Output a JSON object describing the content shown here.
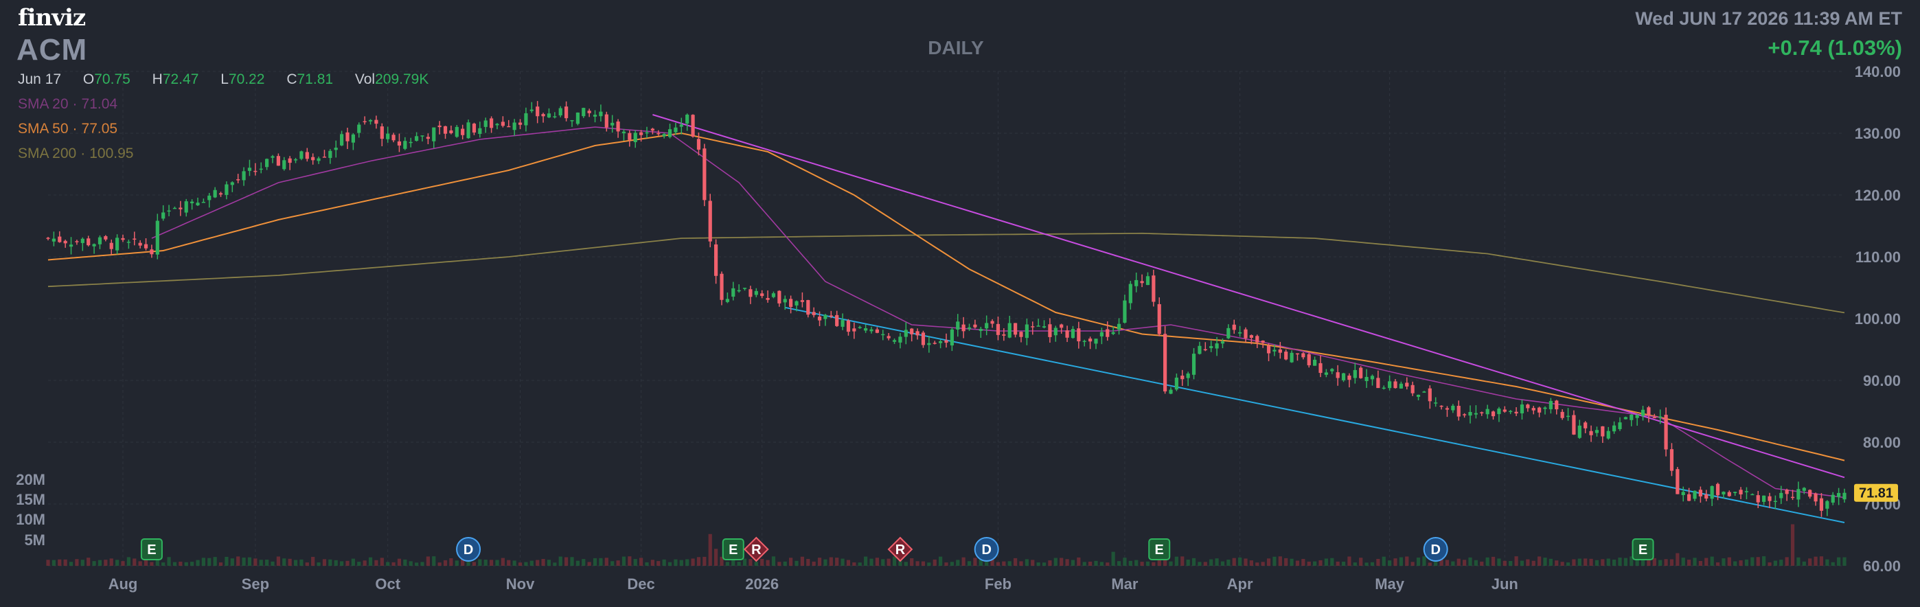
{
  "header": {
    "logo": "finviz",
    "ticker": "ACM",
    "timeframe": "DAILY",
    "datetime": "Wed JUN 17 2026 11:39 AM ET",
    "change": "+0.74 (1.03%)"
  },
  "ohlc": {
    "date": "Jun 17",
    "open_label": "O",
    "open": "70.75",
    "high_label": "H",
    "high": "72.47",
    "low_label": "L",
    "low": "70.22",
    "close_label": "C",
    "close": "71.81",
    "vol_label": "Vol",
    "vol": "209.79K"
  },
  "indicators": {
    "sma20": {
      "label": "SMA 20",
      "value": "71.04"
    },
    "sma50": {
      "label": "SMA 50",
      "value": "77.05"
    },
    "sma200": {
      "label": "SMA 200",
      "value": "100.95"
    }
  },
  "colors": {
    "background": "#22262f",
    "up": "#30b35e",
    "down": "#f0616d",
    "sma20": "#a23aa2",
    "sma50": "#f0913a",
    "sma200": "#8a8148",
    "resistance": "#c74ce0",
    "support": "#29a9e0",
    "price_tag": "#f3c93a"
  },
  "chart_data": {
    "type": "candlestick",
    "ylim": [
      60,
      140
    ],
    "y_ticks": [
      "140.00",
      "130.00",
      "120.00",
      "110.00",
      "100.00",
      "90.00",
      "80.00",
      "70.00",
      "60.00"
    ],
    "x_labels": [
      "Aug",
      "Sep",
      "Oct",
      "Nov",
      "Dec",
      "2026",
      "Feb",
      "Mar",
      "Apr",
      "May",
      "Jun"
    ],
    "volume_ticks": [
      "20M",
      "15M",
      "10M",
      "5M"
    ],
    "last_price": "71.81",
    "anchors": [
      {
        "d": 0,
        "p": 113
      },
      {
        "d": 13,
        "p": 112
      },
      {
        "d": 18,
        "p": 111.5
      },
      {
        "d": 20,
        "p": 118
      },
      {
        "d": 28,
        "p": 120
      },
      {
        "d": 38,
        "p": 125
      },
      {
        "d": 48,
        "p": 127
      },
      {
        "d": 56,
        "p": 132
      },
      {
        "d": 60,
        "p": 128
      },
      {
        "d": 66,
        "p": 130
      },
      {
        "d": 75,
        "p": 131
      },
      {
        "d": 85,
        "p": 133
      },
      {
        "d": 95,
        "p": 133
      },
      {
        "d": 103,
        "p": 129
      },
      {
        "d": 108,
        "p": 131
      },
      {
        "d": 111,
        "p": 133
      },
      {
        "d": 113,
        "p": 127
      },
      {
        "d": 115,
        "p": 112
      },
      {
        "d": 117,
        "p": 104
      },
      {
        "d": 124,
        "p": 104.5
      },
      {
        "d": 128,
        "p": 103
      },
      {
        "d": 140,
        "p": 98
      },
      {
        "d": 150,
        "p": 97
      },
      {
        "d": 155,
        "p": 96
      },
      {
        "d": 158,
        "p": 99
      },
      {
        "d": 170,
        "p": 98
      },
      {
        "d": 185,
        "p": 97
      },
      {
        "d": 188,
        "p": 105
      },
      {
        "d": 191,
        "p": 106
      },
      {
        "d": 193,
        "p": 98
      },
      {
        "d": 194,
        "p": 89
      },
      {
        "d": 197,
        "p": 90
      },
      {
        "d": 200,
        "p": 95
      },
      {
        "d": 205,
        "p": 98
      },
      {
        "d": 212,
        "p": 95
      },
      {
        "d": 225,
        "p": 91
      },
      {
        "d": 235,
        "p": 89
      },
      {
        "d": 245,
        "p": 85
      },
      {
        "d": 255,
        "p": 85
      },
      {
        "d": 262,
        "p": 86
      },
      {
        "d": 265,
        "p": 82
      },
      {
        "d": 270,
        "p": 82
      },
      {
        "d": 275,
        "p": 85
      },
      {
        "d": 280,
        "p": 84
      },
      {
        "d": 283,
        "p": 71
      },
      {
        "d": 290,
        "p": 72
      },
      {
        "d": 300,
        "p": 71
      },
      {
        "d": 305,
        "p": 72
      },
      {
        "d": 308,
        "p": 70
      },
      {
        "d": 312,
        "p": 71.81
      }
    ],
    "sma20_anchors": [
      {
        "d": 18,
        "p": 113
      },
      {
        "d": 40,
        "p": 122
      },
      {
        "d": 56,
        "p": 125.5
      },
      {
        "d": 75,
        "p": 129
      },
      {
        "d": 95,
        "p": 131
      },
      {
        "d": 108,
        "p": 130
      },
      {
        "d": 120,
        "p": 122
      },
      {
        "d": 135,
        "p": 106
      },
      {
        "d": 150,
        "p": 99
      },
      {
        "d": 165,
        "p": 98
      },
      {
        "d": 185,
        "p": 98
      },
      {
        "d": 195,
        "p": 99
      },
      {
        "d": 212,
        "p": 96
      },
      {
        "d": 235,
        "p": 91
      },
      {
        "d": 255,
        "p": 87
      },
      {
        "d": 280,
        "p": 84
      },
      {
        "d": 292,
        "p": 77
      },
      {
        "d": 300,
        "p": 72.5
      },
      {
        "d": 312,
        "p": 71.04
      }
    ],
    "sma50_anchors": [
      {
        "d": 0,
        "p": 109.5
      },
      {
        "d": 20,
        "p": 111
      },
      {
        "d": 40,
        "p": 116
      },
      {
        "d": 60,
        "p": 120
      },
      {
        "d": 80,
        "p": 124
      },
      {
        "d": 95,
        "p": 128
      },
      {
        "d": 110,
        "p": 130
      },
      {
        "d": 125,
        "p": 127
      },
      {
        "d": 140,
        "p": 120
      },
      {
        "d": 160,
        "p": 108
      },
      {
        "d": 175,
        "p": 101
      },
      {
        "d": 190,
        "p": 97.5
      },
      {
        "d": 210,
        "p": 96
      },
      {
        "d": 230,
        "p": 93
      },
      {
        "d": 255,
        "p": 89
      },
      {
        "d": 275,
        "p": 85
      },
      {
        "d": 290,
        "p": 82
      },
      {
        "d": 312,
        "p": 77.05
      }
    ],
    "sma200_anchors": [
      {
        "d": 0,
        "p": 105.2
      },
      {
        "d": 40,
        "p": 107
      },
      {
        "d": 80,
        "p": 110
      },
      {
        "d": 110,
        "p": 113
      },
      {
        "d": 150,
        "p": 113.5
      },
      {
        "d": 190,
        "p": 113.8
      },
      {
        "d": 220,
        "p": 113
      },
      {
        "d": 250,
        "p": 110.5
      },
      {
        "d": 280,
        "p": 106
      },
      {
        "d": 312,
        "p": 100.95
      }
    ],
    "trendlines": [
      {
        "name": "resistance",
        "from": {
          "d": 105,
          "p": 133
        },
        "to": {
          "d": 312,
          "p": 74.3
        }
      },
      {
        "name": "support",
        "from": {
          "d": 128,
          "p": 101.8
        },
        "to": {
          "d": 312,
          "p": 67
        }
      }
    ],
    "events": [
      {
        "type": "E",
        "d": 18
      },
      {
        "type": "D",
        "d": 73
      },
      {
        "type": "E",
        "d": 119
      },
      {
        "type": "R",
        "d": 123
      },
      {
        "type": "R",
        "d": 148
      },
      {
        "type": "D",
        "d": 163
      },
      {
        "type": "E",
        "d": 193
      },
      {
        "type": "D",
        "d": 241
      },
      {
        "type": "E",
        "d": 277
      }
    ]
  }
}
